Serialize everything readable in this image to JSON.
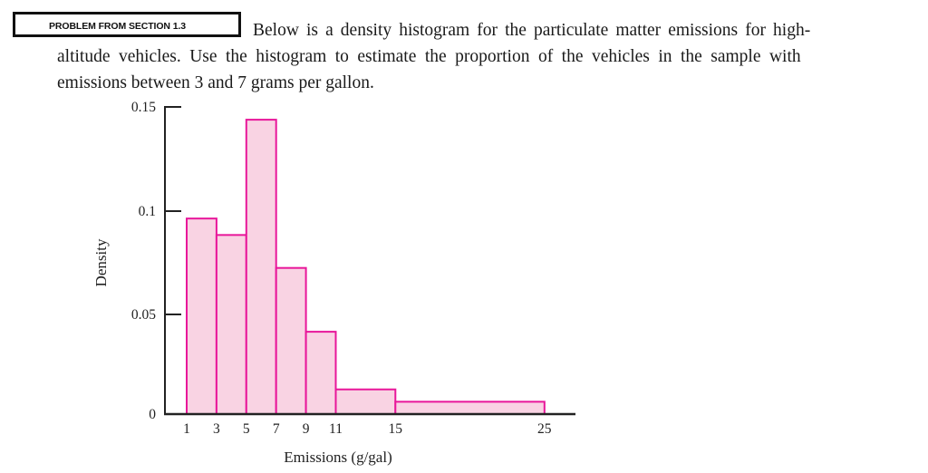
{
  "problem_label": "PROBLEM FROM SECTION 1.3",
  "paragraph": {
    "line1": "Below is a density histogram for the particulate matter emissions for high-",
    "line2": "altitude vehicles. Use the histogram to estimate the proportion of the vehicles in the sample with",
    "line3": "emissions between 3 and 7 grams per gallon."
  },
  "colors": {
    "bar_fill": "#f9d3e3",
    "bar_stroke": "#e8179a",
    "axis": "#222222"
  },
  "chart_data": {
    "type": "bar",
    "histogram": true,
    "title": "",
    "xlabel": "Emissions (g/gal)",
    "ylabel": "Density",
    "bins": [
      {
        "start": 1,
        "end": 3,
        "density": 0.095
      },
      {
        "start": 3,
        "end": 5,
        "density": 0.087
      },
      {
        "start": 5,
        "end": 7,
        "density": 0.143
      },
      {
        "start": 7,
        "end": 9,
        "density": 0.071
      },
      {
        "start": 9,
        "end": 11,
        "density": 0.04
      },
      {
        "start": 11,
        "end": 15,
        "density": 0.012
      },
      {
        "start": 15,
        "end": 25,
        "density": 0.006
      }
    ],
    "categories": [
      "1-3",
      "3-5",
      "5-7",
      "7-9",
      "9-11",
      "11-15",
      "15-25"
    ],
    "values": [
      0.095,
      0.087,
      0.143,
      0.071,
      0.04,
      0.012,
      0.006
    ],
    "x_ticks": [
      1,
      3,
      5,
      7,
      9,
      11,
      15,
      25
    ],
    "x_tick_labels": [
      "1",
      "3",
      "5",
      "7",
      "9",
      "11",
      "15",
      "25"
    ],
    "y_ticks": [
      0,
      0.05,
      0.1,
      0.15
    ],
    "y_tick_labels": [
      "0",
      "0.05",
      "0.1",
      "0.15"
    ],
    "xlim": [
      0,
      27
    ],
    "ylim": [
      0,
      0.15
    ],
    "grid": false,
    "legend": null
  }
}
